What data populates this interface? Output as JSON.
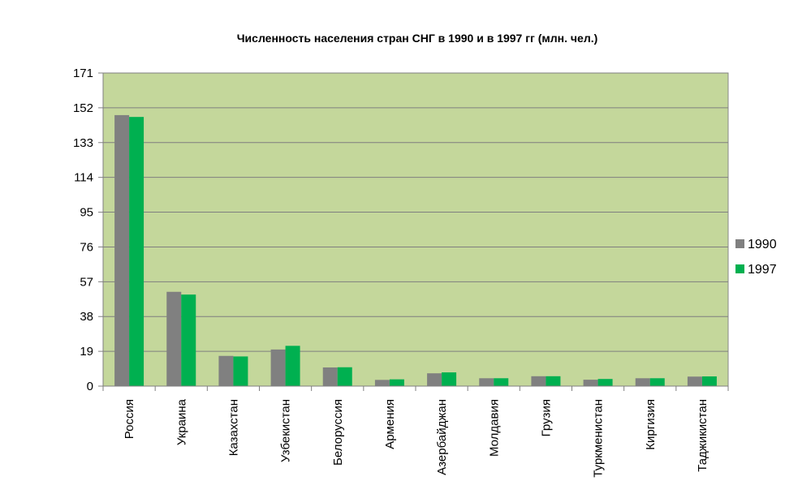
{
  "chart_data": {
    "type": "bar",
    "title": "Численность населения стран СНГ в 1990 и в 1997 гг (млн. чел.)",
    "categories": [
      "Россия",
      "Украина",
      "Казахстан",
      "Узбекистан",
      "Белоруссия",
      "Армения",
      "Азербайджан",
      "Молдавия",
      "Грузия",
      "Туркменистан",
      "Киргизия",
      "Таджикистан"
    ],
    "series": [
      {
        "name": "1990",
        "color": "#808080",
        "values": [
          148,
          51.5,
          16.5,
          20,
          10.2,
          3.4,
          7,
          4.3,
          5.4,
          3.5,
          4.3,
          5.2
        ]
      },
      {
        "name": "1997",
        "color": "#00b050",
        "values": [
          147,
          50,
          16.2,
          22,
          10.3,
          3.7,
          7.5,
          4.3,
          5.4,
          3.9,
          4.3,
          5.3
        ]
      }
    ],
    "yticks": [
      "0",
      "19",
      "38",
      "57",
      "76",
      "95",
      "114",
      "133",
      "152",
      "171"
    ],
    "ylim": [
      0,
      171
    ],
    "grid": true,
    "plot_background": "#c4d79b",
    "legend_position": "right"
  }
}
